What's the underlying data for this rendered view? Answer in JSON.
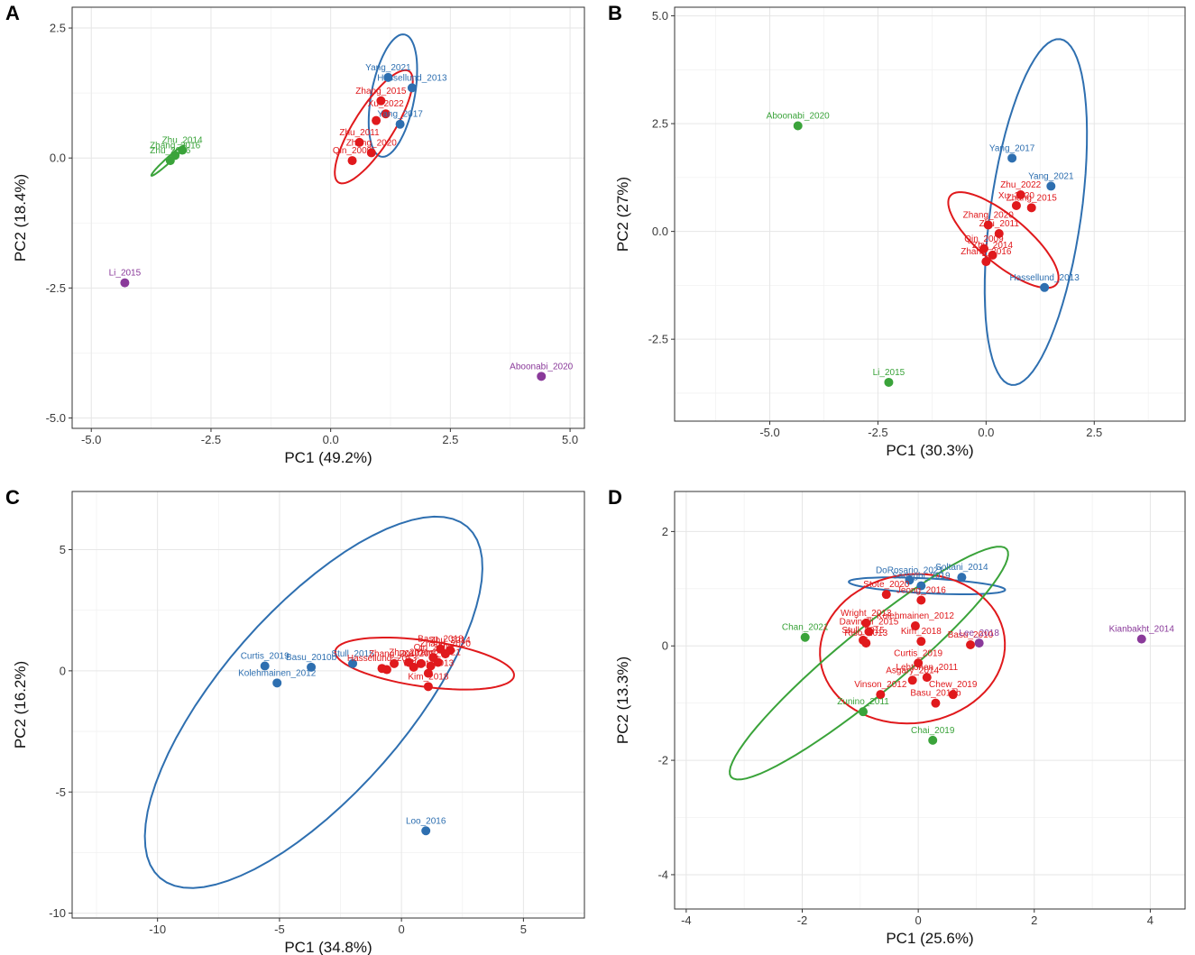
{
  "colors": {
    "blue": "#2e6fb0",
    "red": "#e0191c",
    "green": "#3aa33a",
    "purple": "#8a3a9a"
  },
  "chart_data": [
    {
      "panel": "A",
      "type": "scatter",
      "xlabel": "PC1 (49.2%)",
      "ylabel": "PC2 (18.4%)",
      "xlim": [
        -5.4,
        5.3
      ],
      "ylim": [
        -5.2,
        2.9
      ],
      "xticks": [
        -5,
        -2.5,
        0,
        2.5,
        5
      ],
      "yticks": [
        -5,
        -2.5,
        0,
        2.5
      ],
      "xtick_labels": [
        "-5.0",
        "-2.5",
        "0.0",
        "2.5",
        "5.0"
      ],
      "ytick_labels": [
        "-5.0",
        "-2.5",
        "0.0",
        "2.5"
      ],
      "points": [
        {
          "label": "Yang_2021",
          "x": 1.2,
          "y": 1.55,
          "group": "blue"
        },
        {
          "label": "Hassellund_2013",
          "x": 1.7,
          "y": 1.35,
          "group": "blue"
        },
        {
          "label": "Yang_2017",
          "x": 1.45,
          "y": 0.65,
          "group": "blue"
        },
        {
          "label": "Zhang_2015",
          "x": 1.05,
          "y": 1.1,
          "group": "red"
        },
        {
          "label": "Xu_2022",
          "x": 1.15,
          "y": 0.85,
          "group": "red"
        },
        {
          "label": "Zhu_2011",
          "x": 0.6,
          "y": 0.3,
          "group": "red"
        },
        {
          "label": "Zhang_2020",
          "x": 0.85,
          "y": 0.1,
          "group": "red"
        },
        {
          "label": "Qin_2009",
          "x": 0.45,
          "y": -0.05,
          "group": "red"
        },
        {
          "label": "",
          "x": 0.95,
          "y": 0.72,
          "group": "red"
        },
        {
          "label": "Zhu_2014",
          "x": -3.1,
          "y": 0.15,
          "group": "green"
        },
        {
          "label": "Zhu_2016",
          "x": -3.35,
          "y": -0.05,
          "group": "green"
        },
        {
          "label": "Zhang_2016",
          "x": -3.25,
          "y": 0.05,
          "group": "green"
        },
        {
          "label": "Li_2015",
          "x": -4.3,
          "y": -2.4,
          "group": "purple"
        },
        {
          "label": "Aboonabi_2020",
          "x": 4.4,
          "y": -4.2,
          "group": "purple"
        }
      ],
      "ellipses": [
        {
          "group": "blue",
          "cx": 1.3,
          "cy": 1.2,
          "rx": 0.45,
          "ry": 1.2,
          "angle": -12
        },
        {
          "group": "red",
          "cx": 0.9,
          "cy": 0.6,
          "rx": 0.4,
          "ry": 1.3,
          "angle": -35
        },
        {
          "group": "green",
          "cx": -3.4,
          "cy": -0.05,
          "rx": 0.05,
          "ry": 0.45,
          "angle": -50
        }
      ]
    },
    {
      "panel": "B",
      "type": "scatter",
      "xlabel": "PC1 (30.3%)",
      "ylabel": "PC2 (27%)",
      "xlim": [
        -7.2,
        4.6
      ],
      "ylim": [
        -4.4,
        5.2
      ],
      "xticks": [
        -5,
        -2.5,
        0,
        2.5
      ],
      "yticks": [
        -2.5,
        0,
        2.5,
        5
      ],
      "xtick_labels": [
        "-5.0",
        "-2.5",
        "0.0",
        "2.5"
      ],
      "ytick_labels": [
        "-2.5",
        "0.0",
        "2.5",
        "5.0"
      ],
      "points": [
        {
          "label": "Yang_2017",
          "x": 0.6,
          "y": 1.7,
          "group": "blue"
        },
        {
          "label": "Yang_2021",
          "x": 1.5,
          "y": 1.05,
          "group": "blue"
        },
        {
          "label": "Hassellund_2013",
          "x": 1.35,
          "y": -1.3,
          "group": "blue"
        },
        {
          "label": "Zhu_2022",
          "x": 0.8,
          "y": 0.85,
          "group": "red"
        },
        {
          "label": "Xu_2020",
          "x": 0.7,
          "y": 0.6,
          "group": "red"
        },
        {
          "label": "Zhang_2015",
          "x": 1.05,
          "y": 0.55,
          "group": "red"
        },
        {
          "label": "Zhang_2020",
          "x": 0.05,
          "y": 0.15,
          "group": "red"
        },
        {
          "label": "Zhu_2011",
          "x": 0.3,
          "y": -0.05,
          "group": "red"
        },
        {
          "label": "Qin_2009",
          "x": -0.05,
          "y": -0.4,
          "group": "red"
        },
        {
          "label": "Zhu_2014",
          "x": 0.15,
          "y": -0.55,
          "group": "red"
        },
        {
          "label": "Zhang_2016",
          "x": 0.0,
          "y": -0.7,
          "group": "red"
        },
        {
          "label": "Aboonabi_2020",
          "x": -4.35,
          "y": 2.45,
          "group": "green"
        },
        {
          "label": "Li_2015",
          "x": -2.25,
          "y": -3.5,
          "group": "green"
        }
      ],
      "ellipses": [
        {
          "group": "blue",
          "cx": 1.15,
          "cy": 0.45,
          "rx": 1.05,
          "ry": 4.05,
          "angle": -8
        },
        {
          "group": "red",
          "cx": 0.4,
          "cy": -0.2,
          "rx": 0.55,
          "ry": 1.6,
          "angle": 50
        }
      ]
    },
    {
      "panel": "C",
      "type": "scatter",
      "xlabel": "PC1 (34.8%)",
      "ylabel": "PC2 (16.2%)",
      "xlim": [
        -13.5,
        7.5
      ],
      "ylim": [
        -10.2,
        7.4
      ],
      "xticks": [
        -10,
        -5,
        0,
        5
      ],
      "yticks": [
        -10,
        -5,
        0,
        5
      ],
      "xtick_labels": [
        "-10",
        "-5",
        "0",
        "5"
      ],
      "ytick_labels": [
        "-10",
        "-5",
        "0",
        "5"
      ],
      "points": [
        {
          "label": "Curtis_2019",
          "x": -5.6,
          "y": 0.2,
          "group": "blue"
        },
        {
          "label": "Basu_2010b",
          "x": -3.7,
          "y": 0.15,
          "group": "blue"
        },
        {
          "label": "Kolehmainen_2012",
          "x": -5.1,
          "y": -0.5,
          "group": "blue"
        },
        {
          "label": "Stull_2015",
          "x": -2.0,
          "y": 0.3,
          "group": "blue"
        },
        {
          "label": "Loo_2016",
          "x": 1.0,
          "y": -6.6,
          "group": "blue"
        },
        {
          "label": "Basu_2018",
          "x": 1.6,
          "y": 0.9,
          "group": "red"
        },
        {
          "label": "Zhang_2020",
          "x": 1.8,
          "y": 0.7,
          "group": "red"
        },
        {
          "label": "Zhu_2014",
          "x": 2.0,
          "y": 0.85,
          "group": "red"
        },
        {
          "label": "Qin_2009",
          "x": 1.3,
          "y": 0.55,
          "group": "red"
        },
        {
          "label": "Yang_2021",
          "x": 1.5,
          "y": 0.35,
          "group": "red"
        },
        {
          "label": "Xu_2022",
          "x": 0.8,
          "y": 0.3,
          "group": "red"
        },
        {
          "label": "Zhu_2011",
          "x": 0.3,
          "y": 0.35,
          "group": "red"
        },
        {
          "label": "Zhang_2016",
          "x": -0.3,
          "y": 0.3,
          "group": "red"
        },
        {
          "label": "Hassellund_2013",
          "x": -0.8,
          "y": 0.1,
          "group": "red"
        },
        {
          "label": "Wright_2013",
          "x": 1.1,
          "y": -0.1,
          "group": "red"
        },
        {
          "label": "Kim_2018",
          "x": 1.1,
          "y": -0.65,
          "group": "red"
        },
        {
          "label": "",
          "x": -0.6,
          "y": 0.05,
          "group": "red"
        },
        {
          "label": "",
          "x": 0.5,
          "y": 0.15,
          "group": "red"
        },
        {
          "label": "",
          "x": 1.2,
          "y": 0.2,
          "group": "red"
        }
      ],
      "ellipses": [
        {
          "group": "blue",
          "cx": -3.6,
          "cy": -1.3,
          "rx": 3.8,
          "ry": 9.6,
          "angle": -41
        },
        {
          "group": "red",
          "cx": 0.95,
          "cy": 0.3,
          "rx": 3.7,
          "ry": 0.95,
          "angle": -8
        }
      ]
    },
    {
      "panel": "D",
      "type": "scatter",
      "xlabel": "PC1 (25.6%)",
      "ylabel": "PC2 (13.3%)",
      "xlim": [
        -4.2,
        4.6
      ],
      "ylim": [
        -4.6,
        2.7
      ],
      "xticks": [
        -4,
        -2,
        0,
        2,
        4
      ],
      "yticks": [
        -4,
        -2,
        0,
        2
      ],
      "xtick_labels": [
        "-4",
        "-2",
        "0",
        "2",
        "4"
      ],
      "ytick_labels": [
        "-4",
        "-2",
        "0",
        "2"
      ],
      "points": [
        {
          "label": "DoRosario_2021",
          "x": -0.15,
          "y": 1.15,
          "group": "blue"
        },
        {
          "label": "Soltani_2014",
          "x": 0.75,
          "y": 1.2,
          "group": "blue"
        },
        {
          "label": "Sadeghi_2019",
          "x": 0.05,
          "y": 1.05,
          "group": "blue"
        },
        {
          "label": "Stote_2020",
          "x": -0.55,
          "y": 0.9,
          "group": "red"
        },
        {
          "label": "Jeong_2016",
          "x": 0.05,
          "y": 0.8,
          "group": "red"
        },
        {
          "label": "Kolehmainen_2012",
          "x": -0.05,
          "y": 0.35,
          "group": "red"
        },
        {
          "label": "Wright_2013",
          "x": -0.9,
          "y": 0.4,
          "group": "red"
        },
        {
          "label": "Davinelli_2015",
          "x": -0.85,
          "y": 0.25,
          "group": "red"
        },
        {
          "label": "Stull_2015",
          "x": -0.95,
          "y": 0.1,
          "group": "red"
        },
        {
          "label": "Riso_2013",
          "x": -0.9,
          "y": 0.05,
          "group": "red"
        },
        {
          "label": "Kim_2018",
          "x": 0.05,
          "y": 0.08,
          "group": "red"
        },
        {
          "label": "Basu_2010",
          "x": 0.9,
          "y": 0.02,
          "group": "red"
        },
        {
          "label": "Curtis_2019",
          "x": 0.0,
          "y": -0.3,
          "group": "red"
        },
        {
          "label": "Asgary_2014",
          "x": -0.1,
          "y": -0.6,
          "group": "red"
        },
        {
          "label": "Lehtonen_2011",
          "x": 0.15,
          "y": -0.55,
          "group": "red"
        },
        {
          "label": "Chew_2019",
          "x": 0.6,
          "y": -0.85,
          "group": "red"
        },
        {
          "label": "Vinson_2012",
          "x": -0.65,
          "y": -0.85,
          "group": "red"
        },
        {
          "label": "Basu_2010b",
          "x": 0.3,
          "y": -1.0,
          "group": "red"
        },
        {
          "label": "Chan_2021",
          "x": -1.95,
          "y": 0.15,
          "group": "green"
        },
        {
          "label": "Zunino_2011",
          "x": -0.95,
          "y": -1.15,
          "group": "green"
        },
        {
          "label": "Chai_2019",
          "x": 0.25,
          "y": -1.65,
          "group": "green"
        },
        {
          "label": "Lee_2018",
          "x": 1.05,
          "y": 0.05,
          "group": "purple"
        },
        {
          "label": "Kianbakht_2014",
          "x": 3.85,
          "y": 0.12,
          "group": "purple"
        }
      ],
      "ellipses": [
        {
          "group": "blue",
          "cx": 0.15,
          "cy": 1.05,
          "rx": 1.35,
          "ry": 0.13,
          "angle": -3
        },
        {
          "group": "red",
          "cx": -0.1,
          "cy": -0.05,
          "rx": 1.6,
          "ry": 1.3,
          "angle": 8
        },
        {
          "group": "green",
          "cx": -0.85,
          "cy": -0.3,
          "rx": 3.1,
          "ry": 0.55,
          "angle": 40
        }
      ]
    }
  ]
}
